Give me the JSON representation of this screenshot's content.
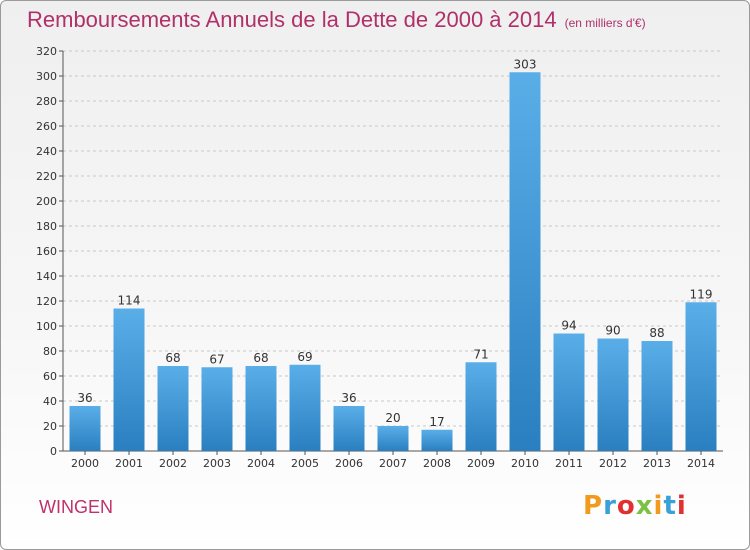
{
  "title": "Remboursements Annuels de la Dette de 2000 à 2014",
  "unit_note": "(en milliers d'€)",
  "commune": "WINGEN",
  "logo": "Proxiti",
  "colors": {
    "title": "#b0306a",
    "bar_top": "#5aaee8",
    "bar_bottom": "#2a7fc0",
    "grid": "#c8c8c8"
  },
  "chart_data": {
    "type": "bar",
    "title": "Remboursements Annuels de la Dette de 2000 à 2014",
    "subtitle": "(en milliers d'€)",
    "categories": [
      "2000",
      "2001",
      "2002",
      "2003",
      "2004",
      "2005",
      "2006",
      "2007",
      "2008",
      "2009",
      "2010",
      "2011",
      "2012",
      "2013",
      "2014"
    ],
    "values": [
      36,
      114,
      68,
      67,
      68,
      69,
      36,
      20,
      17,
      71,
      303,
      94,
      90,
      88,
      119
    ],
    "xlabel": "",
    "ylabel": "",
    "ylim": [
      0,
      320
    ],
    "yticks": [
      0,
      20,
      40,
      60,
      80,
      100,
      120,
      140,
      160,
      180,
      200,
      220,
      240,
      260,
      280,
      300,
      320
    ],
    "grid": true,
    "legend": "none"
  }
}
